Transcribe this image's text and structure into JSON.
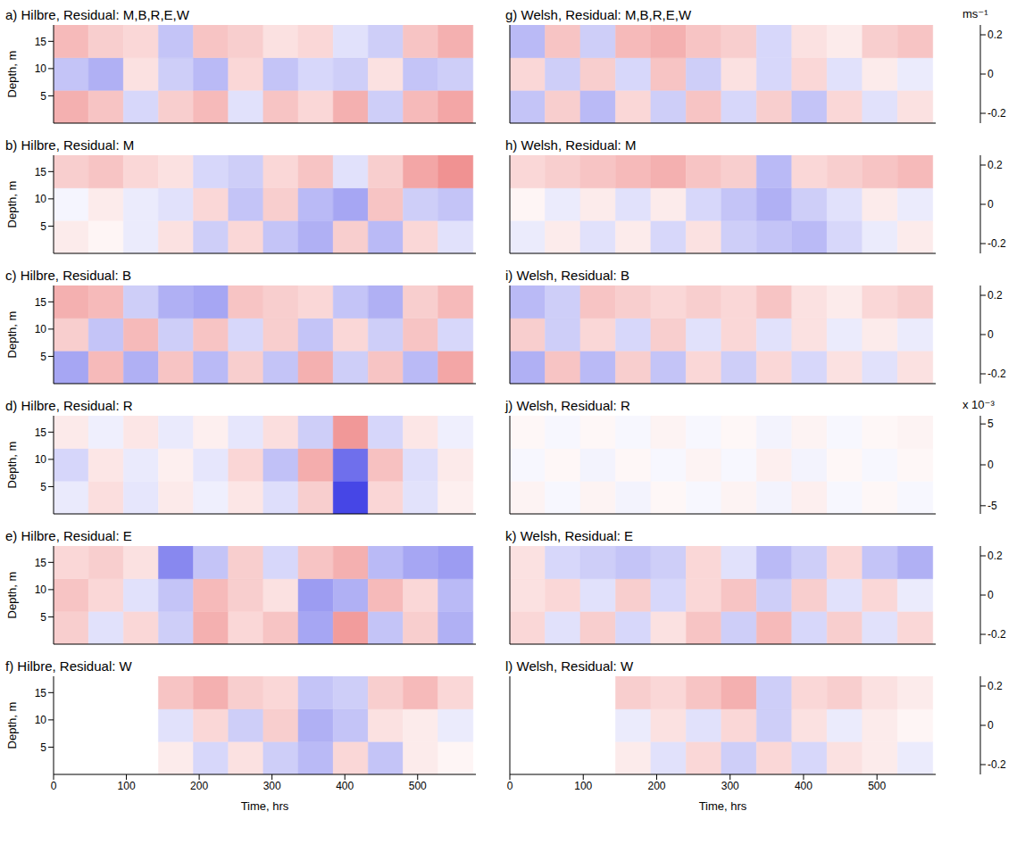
{
  "chart_data": [
    {
      "type": "heatmap",
      "title": "a) Hilbre, Residual: M,B,R,E,W",
      "ylabel": "Depth, m",
      "xlim": [
        0,
        580
      ],
      "ylim": [
        0,
        18
      ],
      "xticks": [
        0,
        100,
        200,
        300,
        400,
        500
      ],
      "yticks": [
        5,
        10,
        15
      ],
      "tick_labels": "y",
      "x_edges": [
        0,
        48,
        96,
        144,
        192,
        240,
        288,
        336,
        384,
        432,
        480,
        528,
        576
      ],
      "y_edges": [
        0,
        6,
        12,
        18
      ],
      "zlim": [
        -0.25,
        0.25
      ],
      "cells": [
        [
          0.08,
          0.06,
          -0.04,
          0.05,
          0.07,
          -0.03,
          0.06,
          0.04,
          0.08,
          -0.05,
          0.07,
          0.09
        ],
        [
          -0.06,
          -0.08,
          0.03,
          -0.05,
          -0.07,
          0.04,
          -0.06,
          -0.04,
          -0.05,
          0.03,
          -0.06,
          -0.05
        ],
        [
          0.07,
          0.05,
          0.04,
          -0.06,
          0.06,
          0.05,
          0.03,
          0.04,
          -0.03,
          -0.05,
          0.06,
          0.08
        ]
      ]
    },
    {
      "type": "heatmap",
      "title": "b) Hilbre, Residual: M",
      "ylabel": "Depth, m",
      "xlim": [
        0,
        580
      ],
      "ylim": [
        0,
        18
      ],
      "xticks": [
        0,
        100,
        200,
        300,
        400,
        500
      ],
      "yticks": [
        5,
        10,
        15
      ],
      "tick_labels": "y",
      "x_edges": [
        0,
        48,
        96,
        144,
        192,
        240,
        288,
        336,
        384,
        432,
        480,
        528,
        576
      ],
      "y_edges": [
        0,
        6,
        12,
        18
      ],
      "zlim": [
        -0.25,
        0.25
      ],
      "cells": [
        [
          0.02,
          0.01,
          -0.02,
          0.03,
          -0.05,
          0.04,
          -0.06,
          -0.08,
          0.05,
          -0.07,
          0.04,
          -0.03
        ],
        [
          -0.01,
          0.02,
          -0.02,
          -0.03,
          0.04,
          -0.06,
          0.05,
          -0.07,
          -0.09,
          0.06,
          -0.05,
          -0.06
        ],
        [
          0.05,
          0.06,
          0.04,
          0.03,
          -0.04,
          -0.05,
          0.04,
          0.06,
          -0.03,
          0.05,
          0.09,
          0.11
        ]
      ]
    },
    {
      "type": "heatmap",
      "title": "c) Hilbre, Residual: B",
      "ylabel": "Depth, m",
      "xlim": [
        0,
        580
      ],
      "ylim": [
        0,
        18
      ],
      "xticks": [
        0,
        100,
        200,
        300,
        400,
        500
      ],
      "yticks": [
        5,
        10,
        15
      ],
      "tick_labels": "y",
      "x_edges": [
        0,
        48,
        96,
        144,
        192,
        240,
        288,
        336,
        384,
        432,
        480,
        528,
        576
      ],
      "y_edges": [
        0,
        6,
        12,
        18
      ],
      "zlim": [
        -0.25,
        0.25
      ],
      "cells": [
        [
          -0.09,
          0.07,
          -0.08,
          0.06,
          -0.07,
          0.05,
          -0.06,
          0.08,
          -0.05,
          0.06,
          -0.07,
          0.09
        ],
        [
          0.05,
          -0.06,
          0.07,
          -0.05,
          0.06,
          -0.04,
          0.05,
          -0.06,
          0.04,
          -0.05,
          0.06,
          -0.04
        ],
        [
          0.08,
          0.07,
          -0.05,
          -0.08,
          -0.09,
          0.06,
          0.05,
          0.04,
          -0.06,
          -0.08,
          0.05,
          0.07
        ]
      ]
    },
    {
      "type": "heatmap",
      "title": "d) Hilbre, Residual: R",
      "ylabel": "Depth, m",
      "xlim": [
        0,
        580
      ],
      "ylim": [
        0,
        18
      ],
      "xticks": [
        0,
        100,
        200,
        300,
        400,
        500
      ],
      "yticks": [
        5,
        10,
        15
      ],
      "tick_labels": "y",
      "x_edges": [
        0,
        48,
        96,
        144,
        192,
        240,
        288,
        336,
        384,
        432,
        480,
        528,
        576
      ],
      "y_edges": [
        0,
        6,
        12,
        18
      ],
      "zlim": [
        -6,
        6
      ],
      "cells": [
        [
          -0.5,
          0.8,
          -0.6,
          0.5,
          -0.4,
          0.6,
          -0.8,
          1.2,
          -4.5,
          1.0,
          -0.7,
          0.4
        ],
        [
          -1.0,
          0.6,
          -0.5,
          0.4,
          -0.6,
          1.0,
          -1.5,
          2.0,
          -3.5,
          1.5,
          -0.8,
          0.5
        ],
        [
          0.5,
          -0.4,
          0.6,
          -0.5,
          0.4,
          -0.6,
          0.8,
          -1.2,
          2.5,
          -1.0,
          0.6,
          -0.4
        ]
      ]
    },
    {
      "type": "heatmap",
      "title": "e) Hilbre, Residual: E",
      "ylabel": "Depth, m",
      "xlim": [
        0,
        580
      ],
      "ylim": [
        0,
        18
      ],
      "xticks": [
        0,
        100,
        200,
        300,
        400,
        500
      ],
      "yticks": [
        5,
        10,
        15
      ],
      "tick_labels": "y",
      "x_edges": [
        0,
        48,
        96,
        144,
        192,
        240,
        288,
        336,
        384,
        432,
        480,
        528,
        576
      ],
      "y_edges": [
        0,
        6,
        12,
        18
      ],
      "zlim": [
        -0.25,
        0.25
      ],
      "cells": [
        [
          0.05,
          -0.03,
          0.04,
          -0.05,
          0.08,
          0.04,
          0.06,
          -0.09,
          0.1,
          -0.06,
          0.05,
          -0.08
        ],
        [
          0.06,
          0.04,
          -0.03,
          -0.06,
          0.07,
          0.05,
          0.03,
          -0.1,
          -0.08,
          0.07,
          0.04,
          -0.07
        ],
        [
          0.04,
          0.05,
          0.03,
          -0.12,
          -0.06,
          0.05,
          -0.04,
          0.06,
          0.08,
          -0.07,
          -0.09,
          -0.1
        ]
      ]
    },
    {
      "type": "heatmap",
      "title": "f) Hilbre, Residual: W",
      "xlabel": "Time, hrs",
      "ylabel": "Depth, m",
      "xlim": [
        0,
        580
      ],
      "ylim": [
        0,
        18
      ],
      "xticks": [
        0,
        100,
        200,
        300,
        400,
        500
      ],
      "yticks": [
        5,
        10,
        15
      ],
      "tick_labels": true,
      "x_edges": [
        0,
        48,
        96,
        144,
        192,
        240,
        288,
        336,
        384,
        432,
        480,
        528,
        576
      ],
      "y_edges": [
        0,
        6,
        12,
        18
      ],
      "zlim": [
        -0.25,
        0.25
      ],
      "cells": [
        [
          null,
          null,
          null,
          0.02,
          -0.04,
          0.03,
          -0.05,
          -0.07,
          0.04,
          -0.06,
          0.02,
          0.01
        ],
        [
          null,
          null,
          null,
          -0.03,
          0.04,
          -0.05,
          0.05,
          -0.08,
          -0.06,
          0.03,
          0.02,
          -0.02
        ],
        [
          null,
          null,
          null,
          0.06,
          0.08,
          0.05,
          0.04,
          -0.06,
          -0.05,
          0.05,
          0.07,
          0.04
        ]
      ]
    },
    {
      "type": "heatmap",
      "title": "g) Welsh, Residual: M,B,R,E,W",
      "xlim": [
        0,
        580
      ],
      "ylim": [
        0,
        18
      ],
      "xticks": [
        0,
        100,
        200,
        300,
        400,
        500
      ],
      "yticks": [
        5,
        10,
        15
      ],
      "tick_labels": false,
      "x_edges": [
        0,
        48,
        96,
        144,
        192,
        240,
        288,
        336,
        384,
        432,
        480,
        528,
        576
      ],
      "y_edges": [
        0,
        6,
        12,
        18
      ],
      "zlim": [
        -0.25,
        0.25
      ],
      "colorbar": {
        "label": "ms⁻¹",
        "ticks": [
          -0.2,
          0,
          0.2
        ]
      },
      "cells": [
        [
          -0.06,
          0.05,
          -0.07,
          0.04,
          -0.05,
          0.06,
          -0.04,
          0.05,
          -0.06,
          0.04,
          -0.03,
          0.03
        ],
        [
          0.04,
          -0.05,
          0.05,
          -0.04,
          0.06,
          -0.05,
          0.03,
          -0.04,
          0.04,
          -0.03,
          0.02,
          -0.02
        ],
        [
          -0.07,
          0.06,
          -0.05,
          0.07,
          0.08,
          0.06,
          0.05,
          -0.04,
          0.03,
          0.02,
          0.05,
          0.06
        ]
      ]
    },
    {
      "type": "heatmap",
      "title": "h) Welsh, Residual: M",
      "xlim": [
        0,
        580
      ],
      "ylim": [
        0,
        18
      ],
      "xticks": [
        0,
        100,
        200,
        300,
        400,
        500
      ],
      "yticks": [
        5,
        10,
        15
      ],
      "tick_labels": false,
      "x_edges": [
        0,
        48,
        96,
        144,
        192,
        240,
        288,
        336,
        384,
        432,
        480,
        528,
        576
      ],
      "y_edges": [
        0,
        6,
        12,
        18
      ],
      "zlim": [
        -0.25,
        0.25
      ],
      "colorbar": {
        "ticks": [
          -0.2,
          0,
          0.2
        ]
      },
      "cells": [
        [
          -0.02,
          0.02,
          -0.03,
          0.02,
          -0.04,
          0.03,
          -0.05,
          -0.06,
          -0.07,
          -0.04,
          -0.02,
          0.02
        ],
        [
          0.01,
          -0.02,
          0.02,
          -0.03,
          0.02,
          -0.04,
          -0.06,
          -0.08,
          -0.05,
          -0.03,
          0.02,
          -0.02
        ],
        [
          0.04,
          0.05,
          0.06,
          0.07,
          0.08,
          0.06,
          0.05,
          -0.07,
          0.04,
          0.05,
          0.06,
          0.07
        ]
      ]
    },
    {
      "type": "heatmap",
      "title": "i) Welsh, Residual: B",
      "xlim": [
        0,
        580
      ],
      "ylim": [
        0,
        18
      ],
      "xticks": [
        0,
        100,
        200,
        300,
        400,
        500
      ],
      "yticks": [
        5,
        10,
        15
      ],
      "tick_labels": false,
      "x_edges": [
        0,
        48,
        96,
        144,
        192,
        240,
        288,
        336,
        384,
        432,
        480,
        528,
        576
      ],
      "y_edges": [
        0,
        6,
        12,
        18
      ],
      "zlim": [
        -0.25,
        0.25
      ],
      "colorbar": {
        "ticks": [
          -0.2,
          0,
          0.2
        ]
      },
      "cells": [
        [
          -0.08,
          0.06,
          -0.07,
          0.05,
          -0.06,
          0.04,
          -0.05,
          0.04,
          -0.04,
          0.03,
          -0.03,
          0.03
        ],
        [
          0.05,
          -0.05,
          0.04,
          -0.04,
          0.05,
          -0.03,
          0.04,
          -0.03,
          0.03,
          -0.02,
          0.02,
          -0.02
        ],
        [
          -0.07,
          -0.05,
          0.06,
          0.05,
          0.04,
          0.05,
          0.04,
          0.06,
          0.03,
          0.02,
          0.04,
          0.05
        ]
      ]
    },
    {
      "type": "heatmap",
      "title": "j) Welsh, Residual: R",
      "xlim": [
        0,
        580
      ],
      "ylim": [
        0,
        18
      ],
      "xticks": [
        0,
        100,
        200,
        300,
        400,
        500
      ],
      "yticks": [
        5,
        10,
        15
      ],
      "tick_labels": false,
      "x_edges": [
        0,
        48,
        96,
        144,
        192,
        240,
        288,
        336,
        384,
        432,
        480,
        528,
        576
      ],
      "y_edges": [
        0,
        6,
        12,
        18
      ],
      "zlim": [
        -6,
        6
      ],
      "colorbar": {
        "label": "x 10⁻³",
        "ticks": [
          -5,
          0,
          5
        ]
      },
      "cells": [
        [
          0.3,
          -0.2,
          0.3,
          -0.3,
          0.2,
          -0.2,
          0.3,
          -0.3,
          0.4,
          -0.2,
          0.2,
          -0.2
        ],
        [
          -0.2,
          0.2,
          -0.3,
          0.2,
          -0.2,
          0.3,
          -0.2,
          0.4,
          -0.3,
          0.2,
          -0.2,
          0.2
        ],
        [
          0.2,
          -0.2,
          0.2,
          -0.2,
          0.3,
          -0.2,
          0.2,
          -0.3,
          0.3,
          -0.2,
          0.2,
          0.3
        ]
      ]
    },
    {
      "type": "heatmap",
      "title": "k) Welsh, Residual: E",
      "xlim": [
        0,
        580
      ],
      "ylim": [
        0,
        18
      ],
      "xticks": [
        0,
        100,
        200,
        300,
        400,
        500
      ],
      "yticks": [
        5,
        10,
        15
      ],
      "tick_labels": false,
      "x_edges": [
        0,
        48,
        96,
        144,
        192,
        240,
        288,
        336,
        384,
        432,
        480,
        528,
        576
      ],
      "y_edges": [
        0,
        6,
        12,
        18
      ],
      "zlim": [
        -0.25,
        0.25
      ],
      "colorbar": {
        "ticks": [
          -0.2,
          0,
          0.2
        ]
      },
      "cells": [
        [
          0.04,
          -0.03,
          0.05,
          -0.04,
          0.03,
          0.06,
          -0.05,
          0.07,
          -0.04,
          0.05,
          -0.03,
          0.04
        ],
        [
          0.03,
          0.04,
          -0.03,
          0.05,
          -0.04,
          0.04,
          0.06,
          -0.05,
          0.05,
          -0.03,
          0.04,
          -0.02
        ],
        [
          0.03,
          -0.04,
          -0.05,
          -0.06,
          -0.05,
          0.04,
          -0.03,
          -0.07,
          -0.05,
          0.04,
          -0.06,
          -0.08
        ]
      ]
    },
    {
      "type": "heatmap",
      "title": "l) Welsh, Residual: W",
      "xlabel": "Time, hrs",
      "xlim": [
        0,
        580
      ],
      "ylim": [
        0,
        18
      ],
      "xticks": [
        0,
        100,
        200,
        300,
        400,
        500
      ],
      "yticks": [
        5,
        10,
        15
      ],
      "tick_labels": "x",
      "x_edges": [
        0,
        48,
        96,
        144,
        192,
        240,
        288,
        336,
        384,
        432,
        480,
        528,
        576
      ],
      "y_edges": [
        0,
        6,
        12,
        18
      ],
      "zlim": [
        -0.25,
        0.25
      ],
      "colorbar": {
        "ticks": [
          -0.2,
          0,
          0.2
        ]
      },
      "cells": [
        [
          null,
          null,
          null,
          0.02,
          -0.03,
          0.04,
          -0.05,
          0.04,
          -0.04,
          0.03,
          0.02,
          -0.02
        ],
        [
          null,
          null,
          null,
          -0.02,
          0.03,
          -0.03,
          0.04,
          -0.05,
          0.03,
          -0.02,
          0.02,
          0.01
        ],
        [
          null,
          null,
          null,
          0.05,
          0.04,
          0.06,
          0.08,
          -0.05,
          0.04,
          0.05,
          0.03,
          0.02
        ]
      ]
    }
  ]
}
